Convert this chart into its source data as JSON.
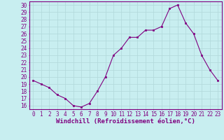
{
  "x": [
    0,
    1,
    2,
    3,
    4,
    5,
    6,
    7,
    8,
    9,
    10,
    11,
    12,
    13,
    14,
    15,
    16,
    17,
    18,
    19,
    20,
    21,
    22,
    23
  ],
  "y": [
    19.5,
    19.0,
    18.5,
    17.5,
    17.0,
    16.0,
    15.8,
    16.3,
    18.0,
    20.0,
    23.0,
    24.0,
    25.5,
    25.5,
    26.5,
    26.5,
    27.0,
    29.5,
    30.0,
    27.5,
    26.0,
    23.0,
    21.0,
    19.5
  ],
  "line_color": "#800080",
  "marker": "s",
  "marker_size": 2,
  "bg_color": "#c8eef0",
  "grid_color": "#b0d8da",
  "xlabel": "Windchill (Refroidissement éolien,°C)",
  "xlim": [
    -0.5,
    23.5
  ],
  "ylim": [
    15.5,
    30.5
  ],
  "yticks": [
    16,
    17,
    18,
    19,
    20,
    21,
    22,
    23,
    24,
    25,
    26,
    27,
    28,
    29,
    30
  ],
  "xticks": [
    0,
    1,
    2,
    3,
    4,
    5,
    6,
    7,
    8,
    9,
    10,
    11,
    12,
    13,
    14,
    15,
    16,
    17,
    18,
    19,
    20,
    21,
    22,
    23
  ],
  "tick_color": "#800080",
  "axis_color": "#800080",
  "label_fontsize": 6.5,
  "tick_fontsize": 5.5
}
